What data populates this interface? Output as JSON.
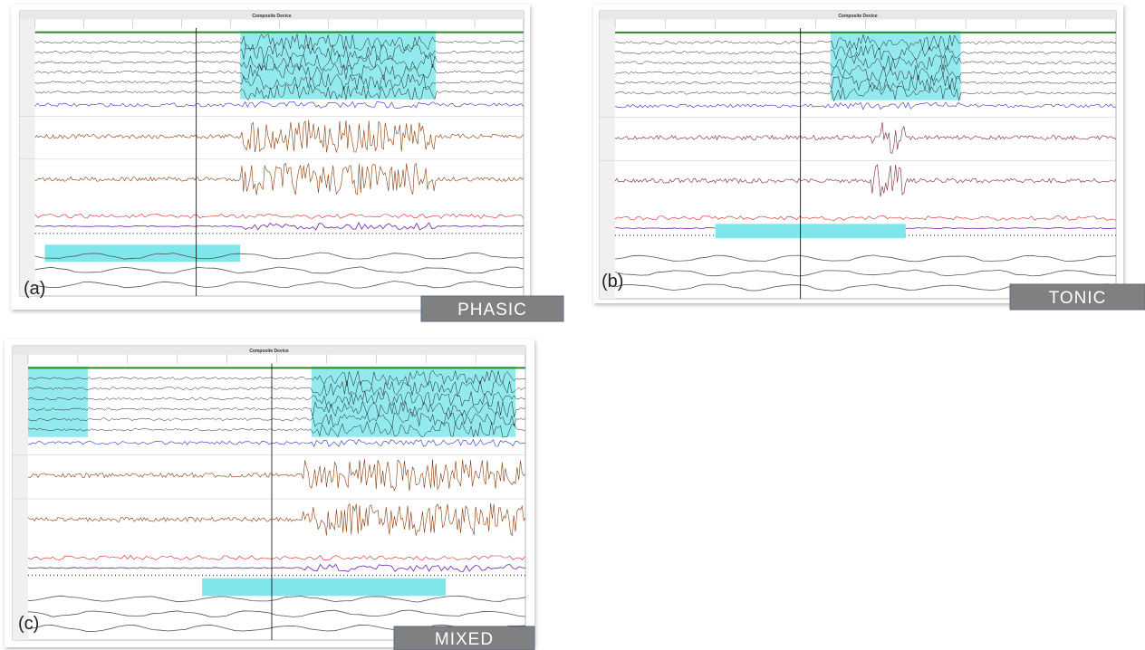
{
  "panels": [
    {
      "label": "(a)",
      "tag": "PHASIC",
      "title": "Composite Device"
    },
    {
      "label": "(b)",
      "tag": "TONIC",
      "title": "Composite Device"
    },
    {
      "label": "(c)",
      "tag": "MIXED",
      "title": "Composite Device"
    }
  ]
}
